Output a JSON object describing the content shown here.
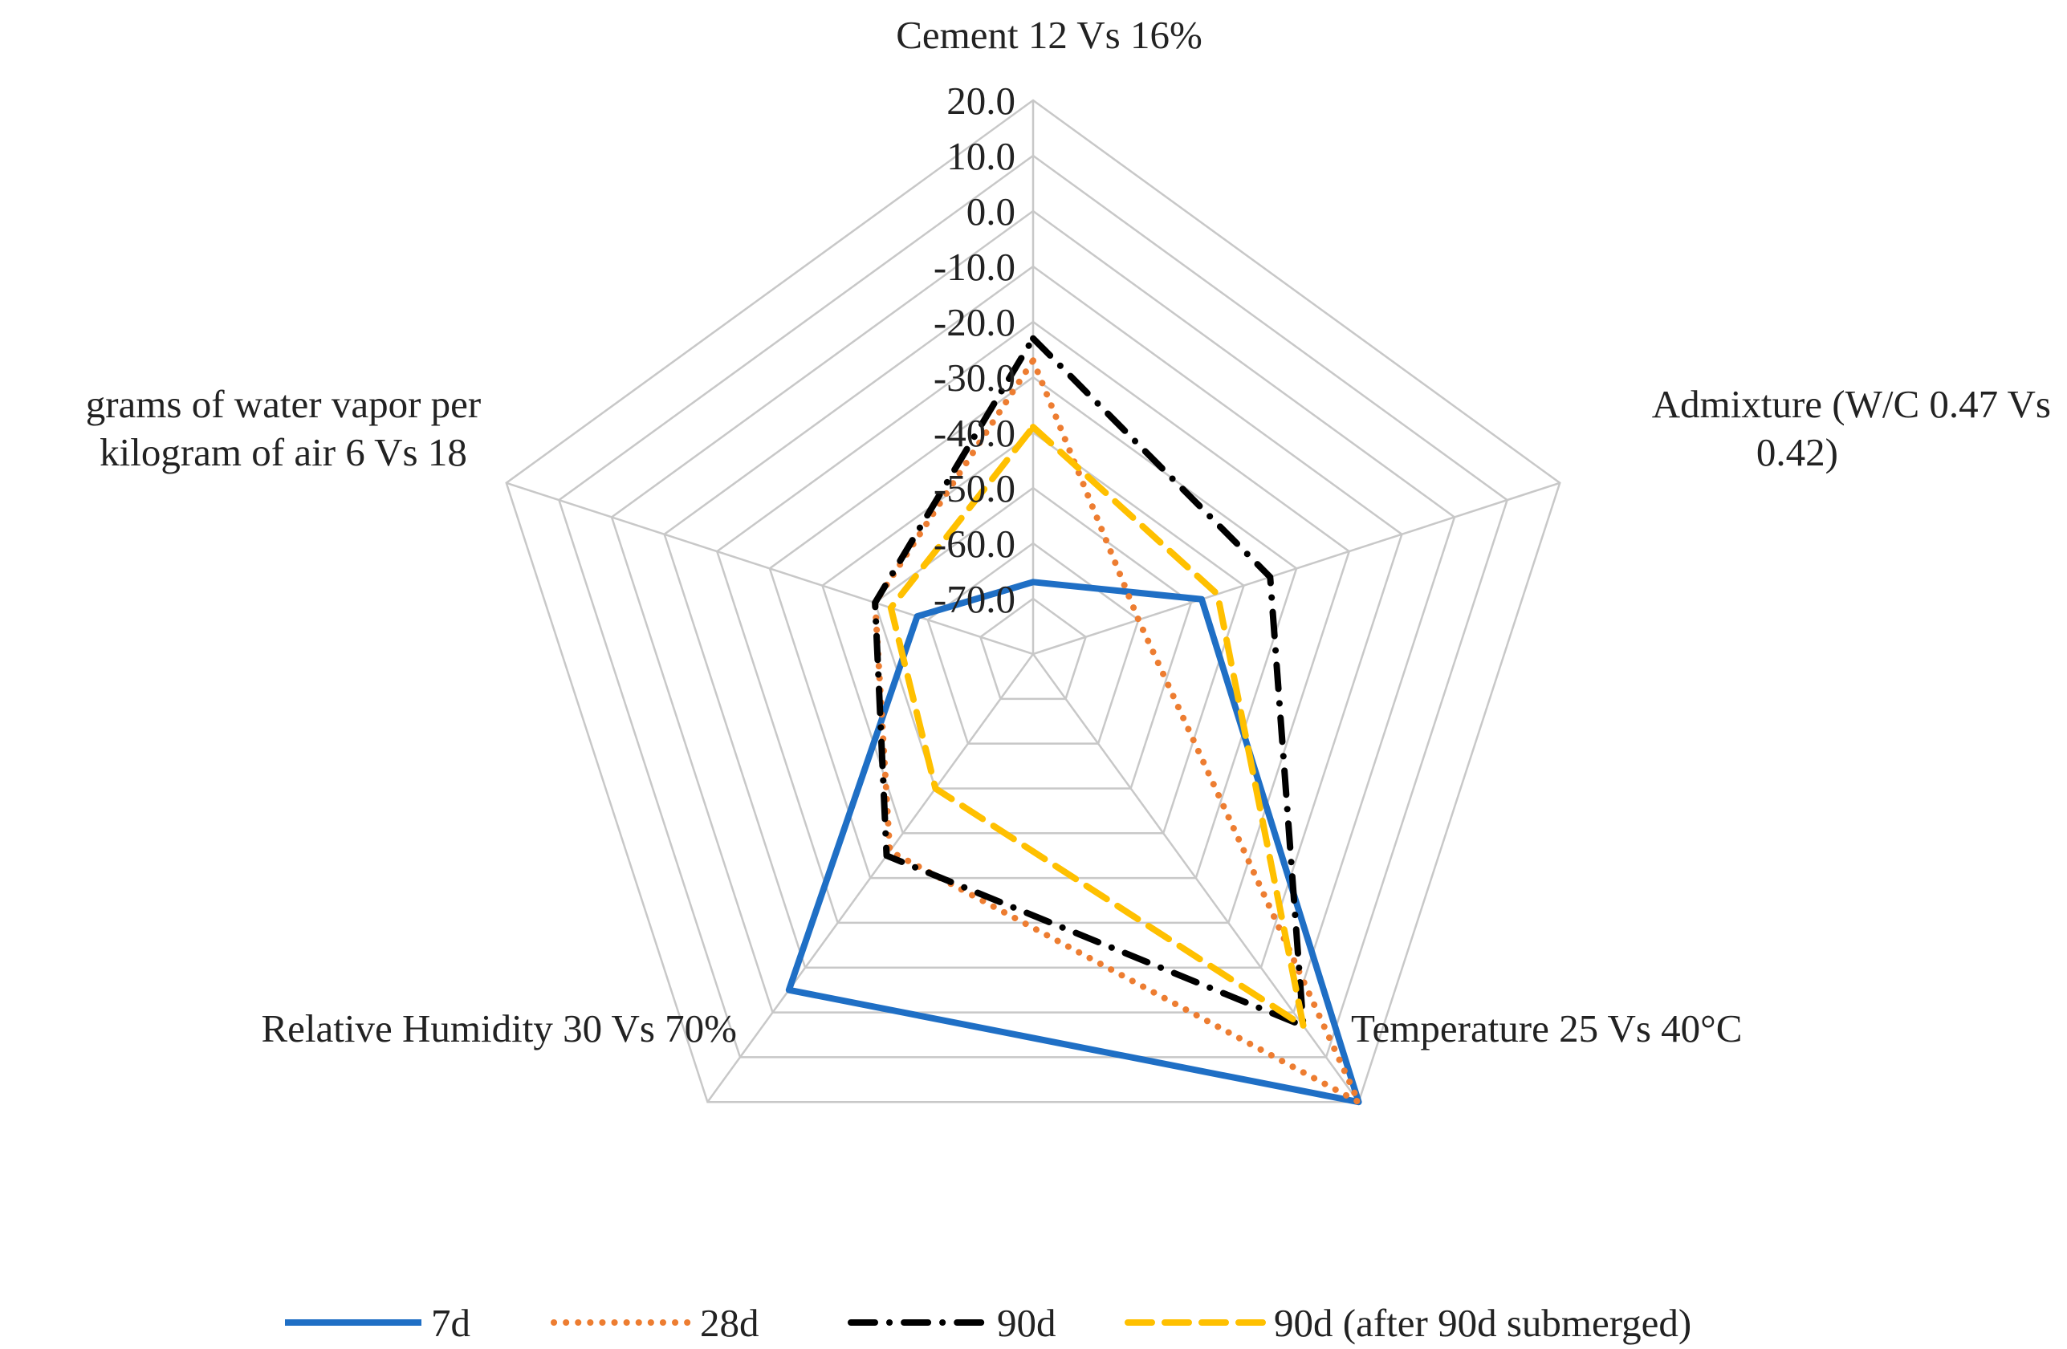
{
  "chart_data": {
    "type": "radar",
    "title": "",
    "axes": [
      "Cement 12 Vs 16%",
      "Admixture (W/C 0.47 Vs 0.42)",
      "Temperature 25 Vs 40°C",
      "Relative Humidity 30 Vs 70%",
      "grams of water vapor per kilogram of air 6 Vs 18"
    ],
    "axis_label_lines": [
      [
        "Cement 12 Vs 16%"
      ],
      [
        "Admixture (W/C 0.47 Vs",
        "0.42)"
      ],
      [
        "Temperature 25 Vs 40°C"
      ],
      [
        "Relative Humidity 30 Vs 70%"
      ],
      [
        "grams of water vapor per",
        "kilogram of air 6 Vs 18"
      ]
    ],
    "range": [
      -80,
      20
    ],
    "ticks": [
      20,
      10,
      0,
      -10,
      -20,
      -30,
      -40,
      -50,
      -60,
      -70
    ],
    "tick_labels": [
      "20.0",
      "10.0",
      "0.0",
      "-10.0",
      "-20.0",
      "-30.0",
      "-40.0",
      "-50.0",
      "-60.0",
      "-70.0"
    ],
    "legend_position": "bottom",
    "series": [
      {
        "name": "7d",
        "color": "#1f6fc5",
        "dash": "solid",
        "values": [
          -67,
          -48,
          20,
          -5,
          -58
        ]
      },
      {
        "name": "28d",
        "color": "#ed7d31",
        "dash": "dotted",
        "values": [
          -27,
          -60,
          20,
          -36,
          -50
        ]
      },
      {
        "name": "90d",
        "color": "#000000",
        "dash": "dashdot",
        "values": [
          -23,
          -35,
          3,
          -35,
          -50
        ]
      },
      {
        "name": "90d (after 90d submerged)",
        "color": "#ffc000",
        "dash": "dashed",
        "values": [
          -39,
          -45,
          3,
          -50,
          -53
        ]
      }
    ]
  }
}
